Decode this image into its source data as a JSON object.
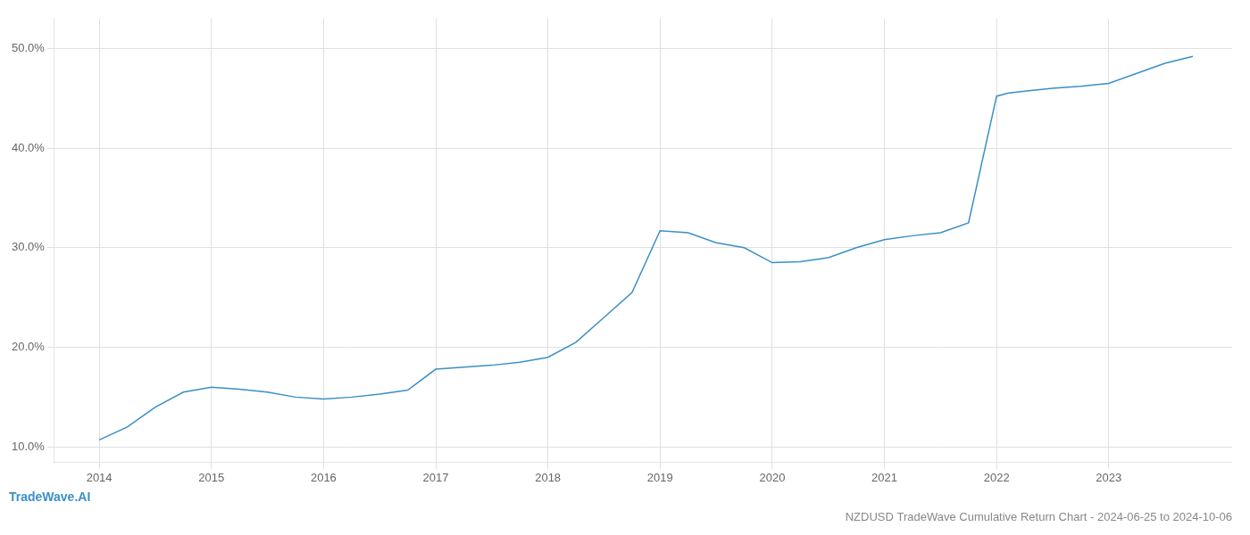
{
  "chart_data": {
    "type": "line",
    "title": "NZDUSD TradeWave Cumulative Return Chart - 2024-06-25 to 2024-10-06",
    "annotations": [
      "TradeWave.AI"
    ],
    "x": [
      2014.0,
      2014.25,
      2014.5,
      2014.75,
      2015.0,
      2015.25,
      2015.5,
      2015.75,
      2016.0,
      2016.25,
      2016.5,
      2016.75,
      2017.0,
      2017.25,
      2017.5,
      2017.75,
      2018.0,
      2018.25,
      2018.5,
      2018.75,
      2019.0,
      2019.25,
      2019.5,
      2019.75,
      2020.0,
      2020.25,
      2020.5,
      2020.75,
      2021.0,
      2021.25,
      2021.5,
      2021.75,
      2022.0,
      2022.1,
      2022.25,
      2022.5,
      2022.75,
      2023.0,
      2023.25,
      2023.5,
      2023.75
    ],
    "values": [
      10.7,
      12.0,
      14.0,
      15.5,
      16.0,
      15.8,
      15.5,
      15.0,
      14.8,
      15.0,
      15.3,
      15.7,
      17.8,
      18.0,
      18.2,
      18.5,
      19.0,
      20.5,
      23.0,
      25.5,
      31.7,
      31.5,
      30.5,
      30.0,
      28.5,
      28.6,
      29.0,
      30.0,
      30.8,
      31.2,
      31.5,
      32.5,
      45.2,
      45.5,
      45.7,
      46.0,
      46.2,
      46.5,
      47.5,
      48.5,
      49.2
    ],
    "color": "#3a8fc7",
    "xlim": [
      2013.6,
      2024.1
    ],
    "xticks": [
      2014,
      2015,
      2016,
      2017,
      2018,
      2019,
      2020,
      2021,
      2022,
      2023
    ],
    "ylim": [
      8.5,
      53.0
    ],
    "yticks": [
      {
        "value": 10.0,
        "label": "10.0%"
      },
      {
        "value": 20.0,
        "label": "20.0%"
      },
      {
        "value": 30.0,
        "label": "30.0%"
      },
      {
        "value": 40.0,
        "label": "40.0%"
      },
      {
        "value": 50.0,
        "label": "50.0%"
      }
    ],
    "grid": true
  }
}
